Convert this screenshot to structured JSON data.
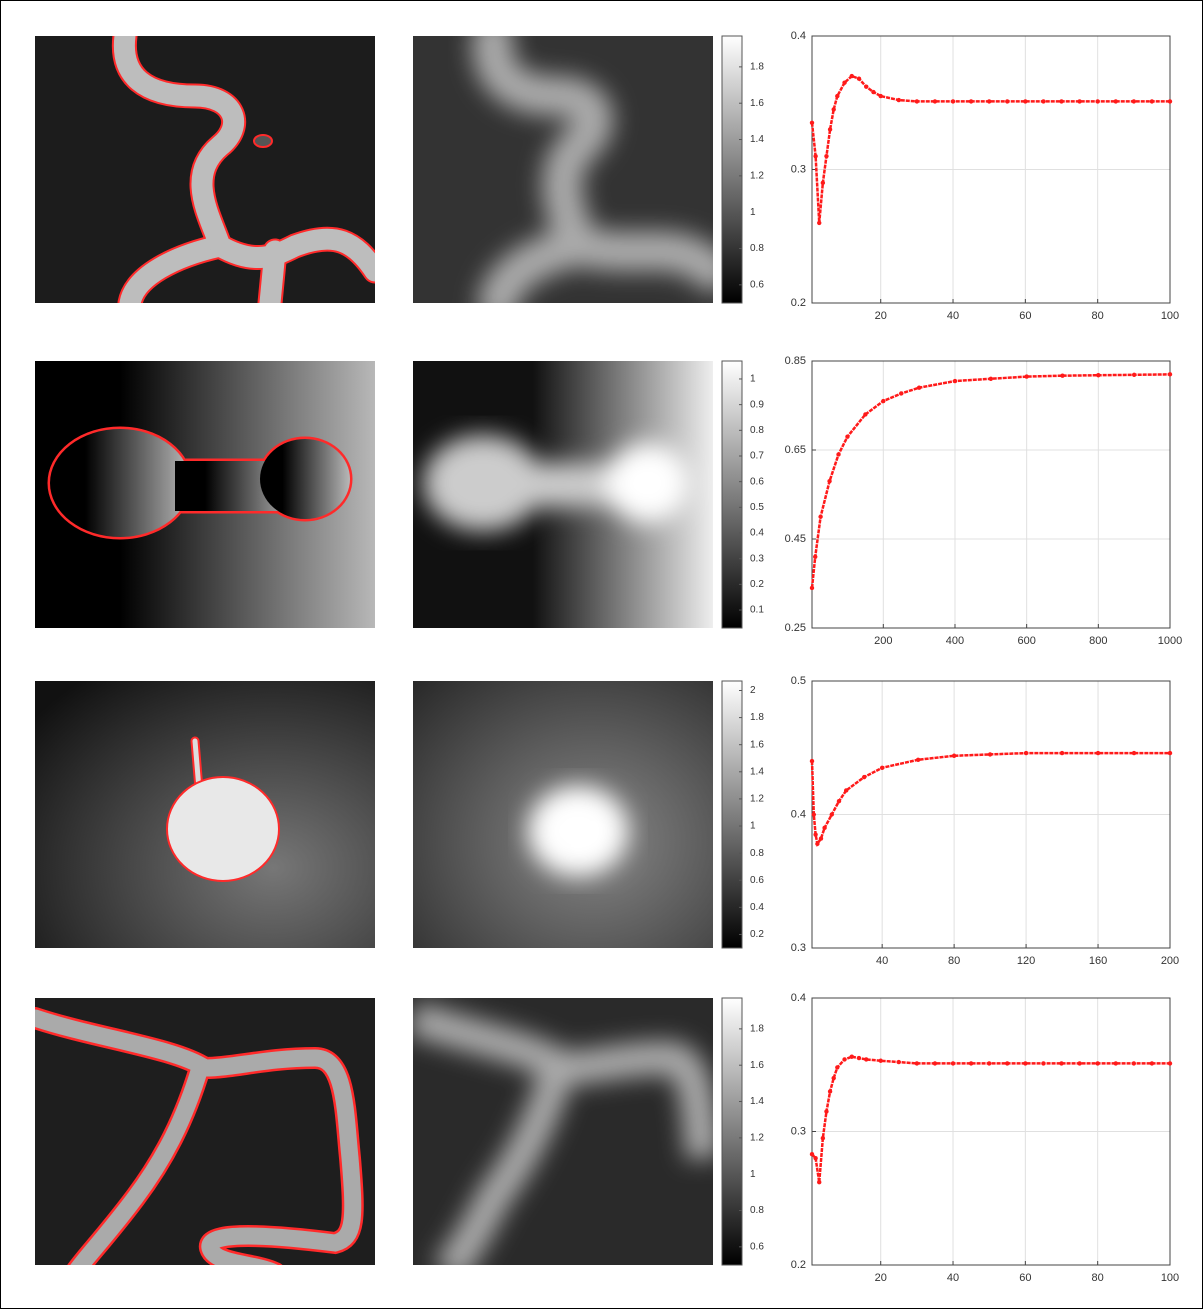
{
  "chart_data": [
    {
      "type": "line",
      "color": "#ff1a1a",
      "grid": true,
      "xlim": [
        1,
        100
      ],
      "xticks": [
        20,
        40,
        60,
        80,
        100
      ],
      "ylim": [
        0.2,
        0.4
      ],
      "yticks": [
        0.2,
        0.3,
        0.4
      ],
      "x": [
        1,
        2,
        3,
        4,
        5,
        6,
        7,
        8,
        10,
        12,
        14,
        16,
        18,
        20,
        25,
        30,
        35,
        40,
        45,
        50,
        55,
        60,
        65,
        70,
        75,
        80,
        85,
        90,
        95,
        100
      ],
      "values": [
        0.335,
        0.31,
        0.26,
        0.29,
        0.31,
        0.33,
        0.345,
        0.355,
        0.365,
        0.37,
        0.368,
        0.362,
        0.358,
        0.355,
        0.352,
        0.351,
        0.351,
        0.351,
        0.351,
        0.351,
        0.351,
        0.351,
        0.351,
        0.351,
        0.351,
        0.351,
        0.351,
        0.351,
        0.351,
        0.351
      ]
    },
    {
      "type": "line",
      "color": "#ff1a1a",
      "grid": true,
      "xlim": [
        1,
        1000
      ],
      "xticks": [
        200,
        400,
        600,
        800,
        1000
      ],
      "ylim": [
        0.25,
        0.85
      ],
      "yticks": [
        0.25,
        0.45,
        0.65,
        0.85
      ],
      "x": [
        1,
        10,
        25,
        50,
        75,
        100,
        150,
        200,
        250,
        300,
        400,
        500,
        600,
        700,
        800,
        900,
        1000
      ],
      "values": [
        0.34,
        0.41,
        0.5,
        0.58,
        0.64,
        0.68,
        0.73,
        0.76,
        0.777,
        0.79,
        0.805,
        0.81,
        0.815,
        0.817,
        0.818,
        0.819,
        0.82
      ]
    },
    {
      "type": "line",
      "color": "#ff1a1a",
      "grid": true,
      "xlim": [
        1,
        200
      ],
      "xticks": [
        40,
        80,
        120,
        160,
        200
      ],
      "ylim": [
        0.3,
        0.5
      ],
      "yticks": [
        0.3,
        0.4,
        0.5
      ],
      "x": [
        1,
        2,
        3,
        4,
        6,
        8,
        12,
        16,
        20,
        30,
        40,
        60,
        80,
        100,
        120,
        140,
        160,
        180,
        200
      ],
      "values": [
        0.44,
        0.4,
        0.385,
        0.378,
        0.382,
        0.39,
        0.4,
        0.41,
        0.418,
        0.428,
        0.435,
        0.441,
        0.444,
        0.445,
        0.446,
        0.446,
        0.446,
        0.446,
        0.446
      ]
    },
    {
      "type": "line",
      "color": "#ff1a1a",
      "grid": true,
      "xlim": [
        1,
        100
      ],
      "xticks": [
        20,
        40,
        60,
        80,
        100
      ],
      "ylim": [
        0.2,
        0.4
      ],
      "yticks": [
        0.2,
        0.3,
        0.4
      ],
      "x": [
        1,
        2,
        3,
        4,
        5,
        6,
        7,
        8,
        10,
        12,
        14,
        16,
        20,
        25,
        30,
        35,
        40,
        45,
        50,
        55,
        60,
        65,
        70,
        75,
        80,
        85,
        90,
        95,
        100
      ],
      "values": [
        0.283,
        0.28,
        0.262,
        0.295,
        0.315,
        0.33,
        0.34,
        0.348,
        0.354,
        0.356,
        0.355,
        0.354,
        0.353,
        0.352,
        0.351,
        0.351,
        0.351,
        0.351,
        0.351,
        0.351,
        0.351,
        0.351,
        0.351,
        0.351,
        0.351,
        0.351,
        0.351,
        0.351,
        0.351
      ]
    }
  ],
  "colorbars": [
    {
      "lim": [
        0.5,
        1.97
      ],
      "ticks": [
        0.6,
        0.8,
        1,
        1.2,
        1.4,
        1.6,
        1.8
      ]
    },
    {
      "lim": [
        0.03,
        1.07
      ],
      "ticks": [
        0.1,
        0.2,
        0.3,
        0.4,
        0.5,
        0.6,
        0.7,
        0.8,
        0.9,
        1
      ]
    },
    {
      "lim": [
        0.1,
        2.07
      ],
      "ticks": [
        0.2,
        0.4,
        0.6,
        0.8,
        1,
        1.2,
        1.4,
        1.6,
        1.8,
        2
      ]
    },
    {
      "lim": [
        0.5,
        1.97
      ],
      "ticks": [
        0.6,
        0.8,
        1,
        1.2,
        1.4,
        1.6,
        1.8
      ]
    }
  ]
}
